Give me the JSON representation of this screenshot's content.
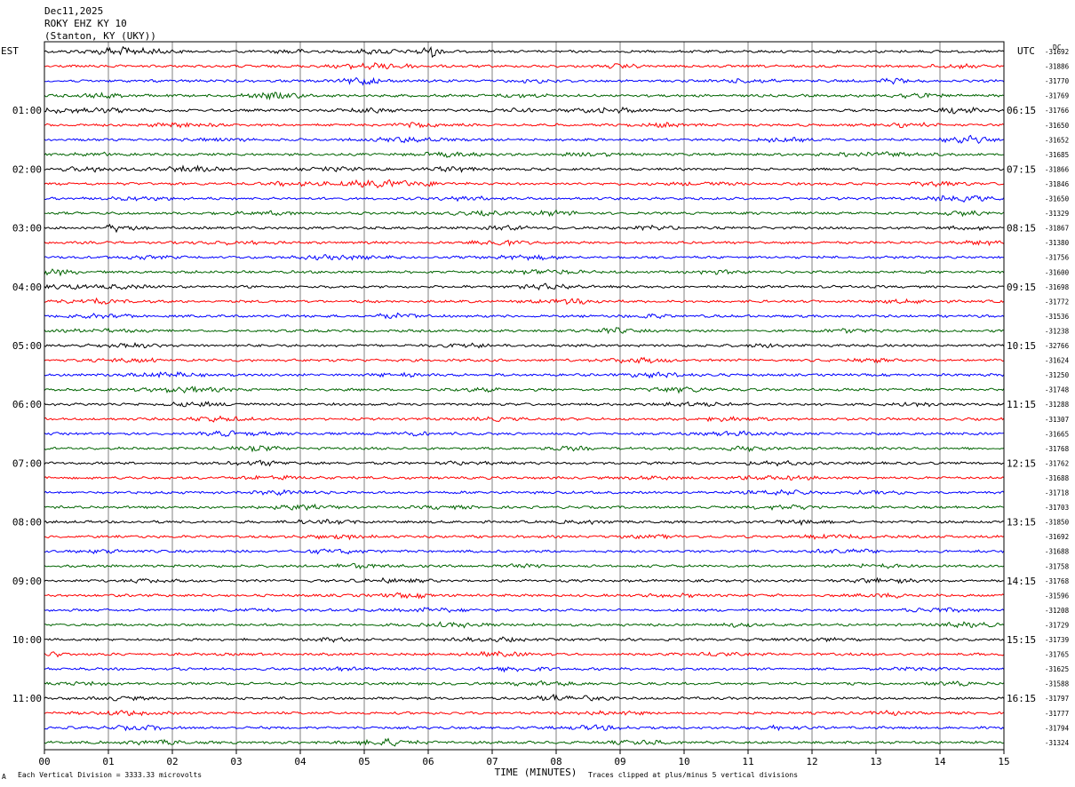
{
  "header": {
    "date": "Dec11,2025",
    "station": "ROKY EHZ KY 10",
    "location": "(Stanton, KY (UKY))",
    "left_zone": "EST",
    "right_zone": "UTC",
    "dc_label": "DC"
  },
  "footer": {
    "scale_note": "Each Vertical Division = 3333.33 microvolts",
    "clip_note": "Traces clipped at plus/minus 5 vertical divisions",
    "corner_mark": "A"
  },
  "colors": {
    "trace_cycle": [
      "#000000",
      "#ff0000",
      "#0000ff",
      "#006400"
    ],
    "grid": "#808080",
    "frame": "#000000",
    "background": "#ffffff"
  },
  "chart_data": {
    "type": "line",
    "title": "ROKY EHZ KY 10",
    "xlabel": "TIME (MINUTES)",
    "ylabel": "",
    "xlim": [
      0,
      15
    ],
    "x_ticks": [
      "00",
      "01",
      "02",
      "03",
      "04",
      "05",
      "06",
      "07",
      "08",
      "09",
      "10",
      "11",
      "12",
      "13",
      "14",
      "15"
    ],
    "left_time_labels": [
      {
        "row": 4,
        "label": "01:00"
      },
      {
        "row": 8,
        "label": "02:00"
      },
      {
        "row": 12,
        "label": "03:00"
      },
      {
        "row": 16,
        "label": "04:00"
      },
      {
        "row": 20,
        "label": "05:00"
      },
      {
        "row": 24,
        "label": "06:00"
      },
      {
        "row": 28,
        "label": "07:00"
      },
      {
        "row": 32,
        "label": "08:00"
      },
      {
        "row": 36,
        "label": "09:00"
      },
      {
        "row": 40,
        "label": "10:00"
      },
      {
        "row": 44,
        "label": "11:00"
      }
    ],
    "right_time_labels": [
      {
        "row": 4,
        "label": "06:15"
      },
      {
        "row": 8,
        "label": "07:15"
      },
      {
        "row": 12,
        "label": "08:15"
      },
      {
        "row": 16,
        "label": "09:15"
      },
      {
        "row": 20,
        "label": "10:15"
      },
      {
        "row": 24,
        "label": "11:15"
      },
      {
        "row": 28,
        "label": "12:15"
      },
      {
        "row": 32,
        "label": "13:15"
      },
      {
        "row": 36,
        "label": "14:15"
      },
      {
        "row": 40,
        "label": "15:15"
      },
      {
        "row": 44,
        "label": "16:15"
      }
    ],
    "dc_offsets": [
      "-31692",
      "-31886",
      "-31770",
      "-31769",
      "-31766",
      "-31650",
      "-31652",
      "-31685",
      "-31866",
      "-31846",
      "-31650",
      "-31329",
      "-31867",
      "-31380",
      "-31756",
      "-31600",
      "-31698",
      "-31772",
      "-31536",
      "-31238",
      "-32766",
      "-31624",
      "-31250",
      "-31748",
      "-31288",
      "-31307",
      "-31665",
      "-31768",
      "-31762",
      "-31688",
      "-31718",
      "-31703",
      "-31850",
      "-31692",
      "-31688",
      "-31758",
      "-31768",
      "-31596",
      "-31208",
      "-31729",
      "-31739",
      "-31765",
      "-31625",
      "-31588",
      "-31797",
      "-31777",
      "-31794",
      "-31324"
    ],
    "series": [
      {
        "row": 0,
        "bursts": [
          [
            1.3,
            0.6,
            3.0
          ],
          [
            6.05,
            0.2,
            4.0
          ],
          [
            5.2,
            0.4,
            1.5
          ],
          [
            3.9,
            0.3,
            1.2
          ]
        ]
      },
      {
        "row": 1,
        "bursts": [
          [
            5.2,
            0.6,
            2.0
          ],
          [
            9.0,
            0.3,
            1.2
          ],
          [
            14.2,
            0.4,
            1.2
          ]
        ]
      },
      {
        "row": 2,
        "bursts": [
          [
            5.0,
            0.3,
            3.0
          ],
          [
            11.0,
            0.4,
            1.2
          ],
          [
            13.3,
            0.3,
            1.5
          ],
          [
            7.7,
            0.4,
            1.0
          ]
        ]
      },
      {
        "row": 3,
        "bursts": [
          [
            3.6,
            0.5,
            2.0
          ],
          [
            0.9,
            0.5,
            1.2
          ],
          [
            13.6,
            0.4,
            1.5
          ],
          [
            7.5,
            0.4,
            1.0
          ]
        ]
      },
      {
        "row": 4,
        "bursts": [
          [
            0.5,
            1.0,
            1.5
          ],
          [
            8.8,
            0.5,
            2.0
          ],
          [
            14.3,
            0.3,
            2.5
          ],
          [
            5.0,
            0.4,
            1.5
          ],
          [
            7.3,
            0.4,
            1.2
          ]
        ]
      },
      {
        "row": 5,
        "bursts": [
          [
            2.2,
            0.5,
            1.3
          ],
          [
            5.8,
            0.5,
            1.3
          ],
          [
            9.7,
            0.4,
            1.3
          ],
          [
            13.5,
            0.4,
            1.2
          ]
        ]
      },
      {
        "row": 6,
        "bursts": [
          [
            14.4,
            0.3,
            3.0
          ],
          [
            2.7,
            0.4,
            1.3
          ],
          [
            5.6,
            0.6,
            1.5
          ],
          [
            11.5,
            0.4,
            1.2
          ]
        ]
      },
      {
        "row": 7,
        "bursts": [
          [
            13.0,
            0.7,
            1.5
          ],
          [
            6.3,
            0.5,
            1.4
          ],
          [
            8.5,
            0.4,
            1.2
          ],
          [
            1.0,
            0.5,
            1.0
          ]
        ]
      },
      {
        "row": 8,
        "bursts": [
          [
            2.2,
            0.5,
            2.0
          ],
          [
            0.8,
            0.5,
            1.5
          ],
          [
            6.4,
            0.4,
            1.5
          ],
          [
            4.5,
            0.4,
            1.2
          ]
        ]
      },
      {
        "row": 9,
        "bursts": [
          [
            5.3,
            0.8,
            2.5
          ],
          [
            3.8,
            0.4,
            1.2
          ],
          [
            10.3,
            0.4,
            1.2
          ],
          [
            14.0,
            0.4,
            1.4
          ]
        ]
      },
      {
        "row": 10,
        "bursts": [
          [
            14.3,
            0.4,
            2.5
          ],
          [
            6.6,
            0.4,
            1.2
          ],
          [
            1.5,
            0.5,
            1.0
          ]
        ]
      },
      {
        "row": 11,
        "bursts": [
          [
            8.0,
            0.3,
            1.8
          ],
          [
            6.8,
            0.4,
            1.3
          ],
          [
            14.4,
            0.4,
            1.4
          ],
          [
            3.5,
            0.5,
            1.0
          ]
        ]
      },
      {
        "row": 12,
        "bursts": [
          [
            1.2,
            0.3,
            2.5
          ],
          [
            7.3,
            0.4,
            1.3
          ],
          [
            9.5,
            0.4,
            1.1
          ],
          [
            14.5,
            0.4,
            1.2
          ]
        ]
      },
      {
        "row": 13,
        "bursts": [
          [
            7.1,
            0.4,
            2.0
          ],
          [
            14.7,
            0.3,
            1.4
          ],
          [
            3.0,
            0.5,
            1.0
          ]
        ]
      },
      {
        "row": 14,
        "bursts": [
          [
            4.5,
            0.6,
            1.5
          ],
          [
            7.5,
            0.5,
            1.5
          ],
          [
            1.5,
            0.4,
            1.0
          ]
        ]
      },
      {
        "row": 15,
        "bursts": [
          [
            0.2,
            0.3,
            1.8
          ],
          [
            7.8,
            0.5,
            1.8
          ],
          [
            10.5,
            0.4,
            1.0
          ]
        ]
      },
      {
        "row": 16,
        "bursts": [
          [
            0.3,
            0.4,
            1.3
          ],
          [
            7.9,
            0.4,
            1.8
          ],
          [
            1.2,
            0.5,
            1.0
          ]
        ]
      },
      {
        "row": 17,
        "bursts": [
          [
            0.7,
            0.5,
            1.5
          ],
          [
            8.2,
            0.5,
            1.5
          ],
          [
            13.5,
            0.4,
            1.0
          ]
        ]
      },
      {
        "row": 18,
        "bursts": [
          [
            5.5,
            0.4,
            1.5
          ],
          [
            0.9,
            0.4,
            1.2
          ],
          [
            9.4,
            0.4,
            1.0
          ]
        ]
      },
      {
        "row": 19,
        "bursts": [
          [
            8.9,
            0.4,
            1.8
          ],
          [
            0.9,
            0.5,
            1.0
          ],
          [
            12.5,
            0.4,
            1.0
          ]
        ]
      },
      {
        "row": 20,
        "bursts": [
          [
            1.3,
            0.5,
            1.3
          ],
          [
            6.6,
            0.4,
            1.2
          ],
          [
            11.4,
            0.4,
            1.0
          ]
        ]
      },
      {
        "row": 21,
        "bursts": [
          [
            1.4,
            0.5,
            1.3
          ],
          [
            9.3,
            0.5,
            1.5
          ],
          [
            12.9,
            0.4,
            1.0
          ]
        ]
      },
      {
        "row": 22,
        "bursts": [
          [
            1.9,
            0.5,
            1.5
          ],
          [
            9.6,
            0.5,
            1.5
          ],
          [
            5.5,
            0.4,
            1.0
          ]
        ]
      },
      {
        "row": 23,
        "bursts": [
          [
            2.2,
            0.6,
            1.8
          ],
          [
            9.9,
            0.5,
            1.5
          ],
          [
            6.8,
            0.4,
            1.0
          ]
        ]
      },
      {
        "row": 24,
        "bursts": [
          [
            2.4,
            0.5,
            1.3
          ],
          [
            10.1,
            0.5,
            1.3
          ],
          [
            13.7,
            0.4,
            1.0
          ]
        ]
      },
      {
        "row": 25,
        "bursts": [
          [
            2.7,
            0.5,
            1.5
          ],
          [
            10.7,
            0.5,
            1.2
          ],
          [
            7.0,
            0.4,
            1.0
          ]
        ]
      },
      {
        "row": 26,
        "bursts": [
          [
            3.0,
            0.5,
            1.5
          ],
          [
            10.9,
            0.5,
            1.2
          ],
          [
            5.8,
            0.4,
            1.0
          ]
        ]
      },
      {
        "row": 27,
        "bursts": [
          [
            3.3,
            0.5,
            1.5
          ],
          [
            10.9,
            0.4,
            1.5
          ],
          [
            8.2,
            0.4,
            1.0
          ]
        ]
      },
      {
        "row": 28,
        "bursts": [
          [
            3.4,
            0.5,
            1.3
          ],
          [
            11.4,
            0.5,
            1.2
          ],
          [
            6.6,
            0.4,
            1.0
          ]
        ]
      },
      {
        "row": 29,
        "bursts": [
          [
            3.6,
            0.5,
            1.3
          ],
          [
            11.4,
            0.6,
            1.3
          ],
          [
            9.5,
            0.4,
            1.0
          ]
        ]
      },
      {
        "row": 30,
        "bursts": [
          [
            3.8,
            0.5,
            1.3
          ],
          [
            11.5,
            0.6,
            1.3
          ],
          [
            13.0,
            0.4,
            1.0
          ]
        ]
      },
      {
        "row": 31,
        "bursts": [
          [
            4.0,
            0.5,
            1.4
          ],
          [
            11.6,
            0.5,
            1.2
          ],
          [
            6.3,
            0.4,
            1.0
          ]
        ]
      },
      {
        "row": 32,
        "bursts": [
          [
            4.4,
            0.5,
            1.3
          ],
          [
            11.9,
            0.5,
            1.3
          ],
          [
            8.5,
            0.4,
            1.0
          ]
        ]
      },
      {
        "row": 33,
        "bursts": [
          [
            4.7,
            0.5,
            1.3
          ],
          [
            12.3,
            0.5,
            1.3
          ],
          [
            9.5,
            0.4,
            1.0
          ]
        ]
      },
      {
        "row": 34,
        "bursts": [
          [
            4.5,
            0.5,
            1.2
          ],
          [
            12.5,
            0.5,
            1.3
          ],
          [
            1.0,
            0.4,
            1.0
          ]
        ]
      },
      {
        "row": 35,
        "bursts": [
          [
            4.9,
            0.5,
            1.3
          ],
          [
            12.9,
            0.5,
            1.3
          ],
          [
            7.5,
            0.4,
            1.0
          ]
        ]
      },
      {
        "row": 36,
        "bursts": [
          [
            5.4,
            0.5,
            1.3
          ],
          [
            13.1,
            0.5,
            1.3
          ],
          [
            1.6,
            0.4,
            1.0
          ]
        ]
      },
      {
        "row": 37,
        "bursts": [
          [
            5.7,
            0.5,
            1.3
          ],
          [
            13.3,
            0.5,
            1.3
          ],
          [
            9.8,
            0.4,
            1.0
          ]
        ]
      },
      {
        "row": 38,
        "bursts": [
          [
            6.0,
            0.5,
            1.4
          ],
          [
            14.0,
            0.5,
            1.4
          ],
          [
            3.2,
            0.4,
            1.0
          ]
        ]
      },
      {
        "row": 39,
        "bursts": [
          [
            6.4,
            0.6,
            1.4
          ],
          [
            14.4,
            0.5,
            1.4
          ],
          [
            10.8,
            0.4,
            1.0
          ]
        ]
      },
      {
        "row": 40,
        "bursts": [
          [
            7.0,
            0.5,
            1.5
          ],
          [
            4.5,
            0.4,
            1.0
          ],
          [
            12.0,
            0.4,
            1.0
          ]
        ]
      },
      {
        "row": 41,
        "bursts": [
          [
            7.1,
            0.5,
            1.3
          ],
          [
            0.1,
            0.2,
            1.4
          ],
          [
            10.5,
            0.4,
            1.0
          ]
        ]
      },
      {
        "row": 42,
        "bursts": [
          [
            7.4,
            0.5,
            1.4
          ],
          [
            4.6,
            0.4,
            1.0
          ],
          [
            13.7,
            0.4,
            1.0
          ]
        ]
      },
      {
        "row": 43,
        "bursts": [
          [
            7.8,
            0.5,
            1.3
          ],
          [
            0.7,
            0.4,
            1.0
          ],
          [
            14.2,
            0.4,
            1.0
          ]
        ]
      },
      {
        "row": 44,
        "bursts": [
          [
            7.9,
            0.2,
            1.8
          ],
          [
            8.4,
            0.5,
            1.3
          ],
          [
            1.2,
            0.4,
            1.0
          ]
        ]
      },
      {
        "row": 45,
        "bursts": [
          [
            1.3,
            0.5,
            1.4
          ],
          [
            8.8,
            0.5,
            1.3
          ],
          [
            13.2,
            0.3,
            1.3
          ]
        ]
      },
      {
        "row": 46,
        "bursts": [
          [
            1.5,
            0.5,
            1.3
          ],
          [
            8.7,
            0.5,
            1.3
          ],
          [
            11.5,
            0.4,
            1.0
          ]
        ]
      },
      {
        "row": 47,
        "bursts": [
          [
            5.3,
            0.5,
            2.2
          ],
          [
            1.7,
            0.5,
            1.3
          ],
          [
            9.4,
            0.5,
            1.3
          ]
        ]
      }
    ]
  }
}
